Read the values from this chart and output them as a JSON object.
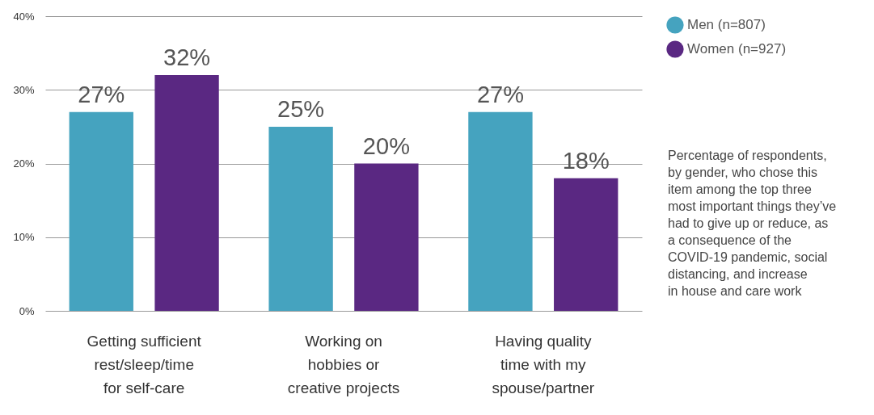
{
  "chart_data": {
    "type": "bar",
    "categories": [
      "Getting sufficient\nrest/sleep/time\nfor self-care",
      "Working on\nhobbies or\ncreative projects",
      "Having quality\ntime with my\nspouse/partner"
    ],
    "series": [
      {
        "name": "Men (n=807)",
        "color": "#45a3bf",
        "values": [
          27,
          25,
          27
        ],
        "value_labels": [
          "27%",
          "25%",
          "27%"
        ]
      },
      {
        "name": "Women (n=927)",
        "color": "#5a2882",
        "values": [
          32,
          20,
          18
        ],
        "value_labels": [
          "32%",
          "20%",
          "18%"
        ]
      }
    ],
    "ylim": [
      0,
      40
    ],
    "yticks": [
      {
        "value": 0,
        "label": "0%"
      },
      {
        "value": 10,
        "label": "10%"
      },
      {
        "value": 20,
        "label": "20%"
      },
      {
        "value": 30,
        "label": "30%"
      },
      {
        "value": 40,
        "label": "40%"
      }
    ],
    "grid": "y",
    "legend": "top right",
    "annotations": [
      "Percentage of respondents,\nby gender, who chose this\nitem among the top three\nmost important things they’ve\nhad to give up or reduce, as\na consequence of the\nCOVID-19 pandemic, social\ndistancing, and increase\nin house and care work"
    ]
  }
}
